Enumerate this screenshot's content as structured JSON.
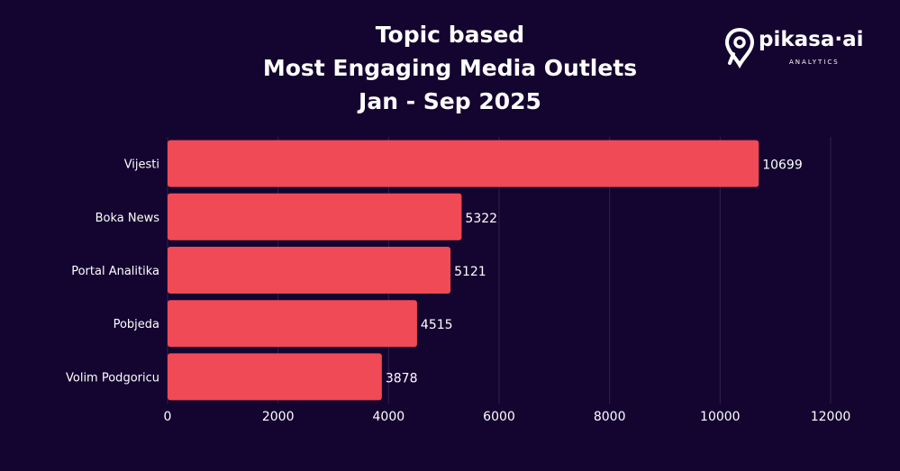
{
  "title_lines": [
    "Topic based",
    "Most Engaging Media Outlets",
    "Jan - Sep 2025"
  ],
  "logo": {
    "icon": "pikasa-pin-icon",
    "word": "pikasa·ai",
    "sub": "ANALYTICS"
  },
  "colors": {
    "background": "#140430",
    "bar": "#ef4a55",
    "grid": "#2e2150",
    "text": "#ffffff"
  },
  "chart_data": {
    "type": "bar",
    "orientation": "horizontal",
    "title": "Topic based Most Engaging Media Outlets Jan - Sep 2025",
    "categories": [
      "Vijesti",
      "Boka News",
      "Portal Analitika",
      "Pobjeda",
      "Volim Podgoricu"
    ],
    "values": [
      10699,
      5322,
      5121,
      4515,
      3878
    ],
    "xlim": [
      0,
      12000
    ],
    "xticks": [
      0,
      2000,
      4000,
      6000,
      8000,
      10000,
      12000
    ],
    "grid": "vertical",
    "data_labels": true,
    "xlabel": "",
    "ylabel": ""
  }
}
